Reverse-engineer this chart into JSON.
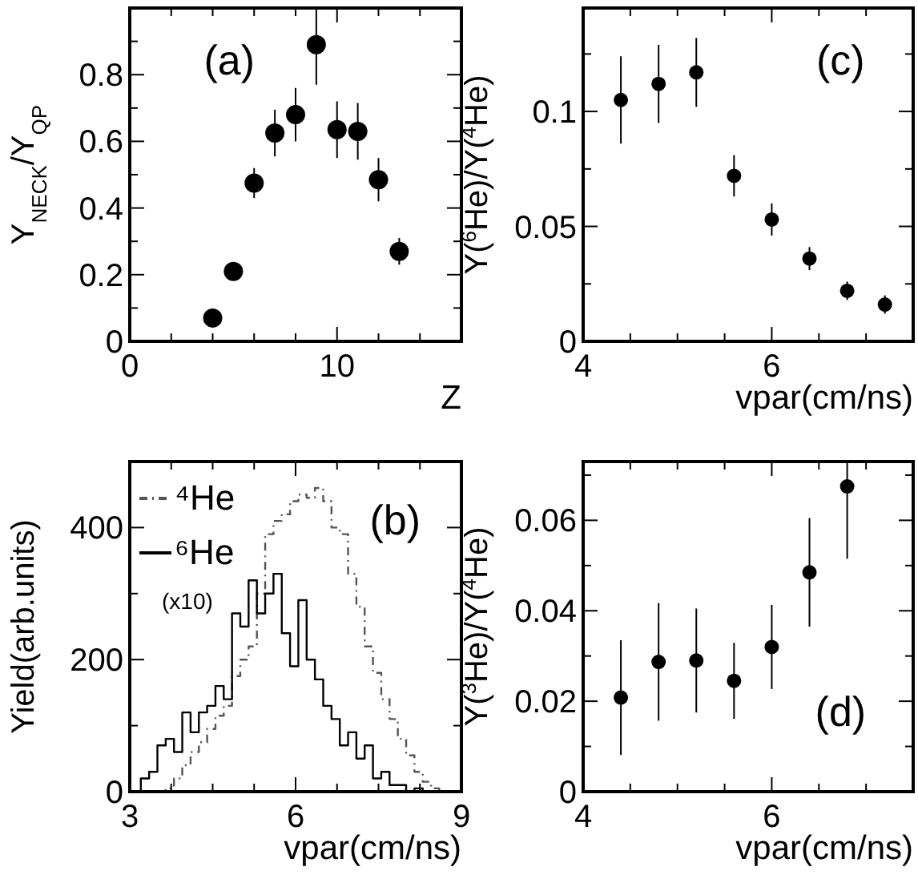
{
  "chart_data": [
    {
      "type": "scatter",
      "title": "(a)",
      "xlabel": "Z",
      "ylabel": "Y$_{NECK}$/Y$_{QP}$",
      "marker": "circle",
      "color": "#000000",
      "x": [
        4,
        5,
        6,
        7,
        8,
        9,
        10,
        11,
        12,
        13
      ],
      "values": [
        0.07,
        0.21,
        0.475,
        0.625,
        0.68,
        0.89,
        0.635,
        0.63,
        0.485,
        0.27
      ],
      "errors": [
        0.01,
        0.02,
        0.045,
        0.07,
        0.08,
        0.12,
        0.085,
        0.085,
        0.065,
        0.04
      ],
      "xlim": [
        0,
        16
      ],
      "ylim": [
        0,
        1
      ],
      "xticks": [
        0,
        {
          "value": 2,
          "label": null
        },
        {
          "value": 4,
          "label": null
        },
        {
          "value": 6,
          "label": null
        },
        {
          "value": 8,
          "label": null
        },
        10,
        {
          "value": 12,
          "label": null
        },
        {
          "value": 14,
          "label": null
        }
      ],
      "yticks": [
        0,
        {
          "value": 0.1,
          "label": null
        },
        0.2,
        {
          "value": 0.3,
          "label": null
        },
        0.4,
        {
          "value": 0.5,
          "label": null
        },
        0.6,
        {
          "value": 0.7,
          "label": null
        },
        0.8,
        {
          "value": 0.9,
          "label": null
        }
      ]
    },
    {
      "type": "scatter",
      "title": "(c)",
      "xlabel": "vpar(cm/ns)",
      "ylabel": "Y($^{6}$He)/Y($^{4}$He)",
      "marker": "circle",
      "color": "#000000",
      "x": [
        4.4,
        4.8,
        5.2,
        5.6,
        6.0,
        6.4,
        6.8,
        7.2
      ],
      "values": [
        0.105,
        0.112,
        0.117,
        0.072,
        0.053,
        0.036,
        0.022,
        0.016
      ],
      "errors": [
        0.019,
        0.017,
        0.015,
        0.009,
        0.007,
        0.005,
        0.004,
        0.004
      ],
      "xlim": [
        4,
        7.5
      ],
      "ylim": [
        0,
        0.145
      ],
      "xticks": [
        4,
        {
          "value": 4.5,
          "label": null
        },
        {
          "value": 5,
          "label": null
        },
        {
          "value": 5.5,
          "label": null
        },
        6,
        {
          "value": 6.5,
          "label": null
        },
        {
          "value": 7,
          "label": null
        }
      ],
      "yticks": [
        0,
        {
          "value": 0.025,
          "label": null
        },
        0.05,
        {
          "value": 0.075,
          "label": null
        },
        0.1,
        {
          "value": 0.125,
          "label": null
        }
      ]
    },
    {
      "type": "histogram",
      "title": "(b)",
      "xlabel": "vpar(cm/ns)",
      "ylabel": "Yield(arb.units)",
      "legend": "top left",
      "annotations": [
        "(x10)"
      ],
      "bins": [
        3.2,
        3.35,
        3.5,
        3.65,
        3.8,
        3.95,
        4.1,
        4.25,
        4.4,
        4.55,
        4.7,
        4.85,
        5.0,
        5.15,
        5.3,
        5.45,
        5.6,
        5.75,
        5.9,
        6.05,
        6.2,
        6.35,
        6.5,
        6.65,
        6.8,
        6.95,
        7.1,
        7.25,
        7.4,
        7.55,
        7.7,
        7.85,
        8.0,
        8.15,
        8.3,
        8.45,
        8.6,
        8.75
      ],
      "series": [
        {
          "name": "⁴He",
          "color": "#555555",
          "line_style": "dashed",
          "values": [
            0,
            0,
            0,
            5,
            20,
            40,
            60,
            75,
            95,
            115,
            130,
            175,
            200,
            220,
            300,
            390,
            410,
            420,
            440,
            450,
            445,
            460,
            440,
            400,
            390,
            330,
            280,
            220,
            180,
            140,
            110,
            80,
            55,
            30,
            15,
            5,
            0
          ]
        },
        {
          "name": "⁶He",
          "color": "#000000",
          "line_style": "solid",
          "values": [
            20,
            30,
            70,
            80,
            60,
            120,
            90,
            120,
            130,
            160,
            140,
            270,
            250,
            320,
            270,
            300,
            330,
            240,
            190,
            290,
            200,
            170,
            130,
            110,
            70,
            90,
            50,
            70,
            20,
            30,
            10,
            10,
            0,
            5,
            0,
            0,
            0
          ]
        }
      ],
      "xlim": [
        3,
        9
      ],
      "ylim": [
        0,
        500
      ],
      "xticks": [
        3,
        {
          "value": 3.75,
          "label": null
        },
        {
          "value": 4.5,
          "label": null
        },
        {
          "value": 5.25,
          "label": null
        },
        6,
        {
          "value": 6.75,
          "label": null
        },
        {
          "value": 7.5,
          "label": null
        },
        {
          "value": 8.25,
          "label": null
        },
        9
      ],
      "yticks": [
        0,
        {
          "value": 100,
          "label": null
        },
        200,
        {
          "value": 300,
          "label": null
        },
        400
      ]
    },
    {
      "type": "scatter",
      "title": "(d)",
      "xlabel": "vpar(cm/ns)",
      "ylabel": "Y($^{3}$He)/Y($^{4}$He)",
      "marker": "circle",
      "color": "#000000",
      "x": [
        4.4,
        4.8,
        5.2,
        5.6,
        6.0,
        6.4,
        6.8
      ],
      "values": [
        0.0208,
        0.0287,
        0.029,
        0.0245,
        0.032,
        0.0485,
        0.0675
      ],
      "errors": [
        0.0127,
        0.013,
        0.0115,
        0.0084,
        0.0093,
        0.012,
        0.016
      ],
      "xlim": [
        4,
        7.5
      ],
      "ylim": [
        0,
        0.073
      ],
      "xticks": [
        4,
        {
          "value": 4.5,
          "label": null
        },
        {
          "value": 5,
          "label": null
        },
        {
          "value": 5.5,
          "label": null
        },
        6,
        {
          "value": 6.5,
          "label": null
        },
        {
          "value": 7,
          "label": null
        }
      ],
      "yticks": [
        0,
        {
          "value": 0.01,
          "label": null
        },
        0.02,
        {
          "value": 0.03,
          "label": null
        },
        0.04,
        {
          "value": 0.05,
          "label": null
        },
        0.06,
        {
          "value": 0.07,
          "label": null
        }
      ]
    }
  ]
}
